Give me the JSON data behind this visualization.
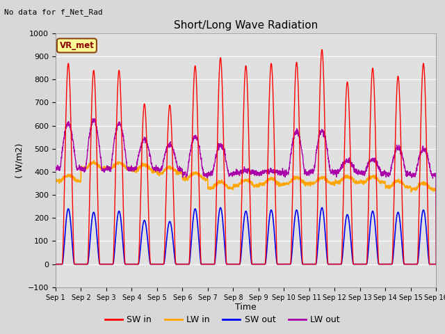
{
  "title": "Short/Long Wave Radiation",
  "xlabel": "Time",
  "ylabel": "( W/m2)",
  "ylim": [
    -100,
    1000
  ],
  "xlim": [
    0,
    15
  ],
  "x_tick_labels": [
    "Sep 1",
    "Sep 2",
    "Sep 3",
    "Sep 4",
    "Sep 5",
    "Sep 6",
    "Sep 7",
    "Sep 8",
    "Sep 9",
    "Sep 10",
    "Sep 11",
    "Sep 12",
    "Sep 13",
    "Sep 14",
    "Sep 15",
    "Sep 16"
  ],
  "annotation_text": "No data for f_Net_Rad",
  "vr_met_label": "VR_met",
  "fig_bg_color": "#d8d8d8",
  "plot_bg_color": "#e0e0e0",
  "colors": {
    "SW_in": "#ff0000",
    "LW_in": "#ffa500",
    "SW_out": "#0000ee",
    "LW_out": "#aa00aa"
  },
  "legend_labels": [
    "SW in",
    "LW in",
    "SW out",
    "LW out"
  ],
  "peak_SW_in": [
    870,
    840,
    840,
    695,
    690,
    860,
    895,
    860,
    870,
    875,
    930,
    790,
    850,
    815,
    870
  ],
  "peak_SW_out": [
    240,
    225,
    230,
    190,
    185,
    240,
    245,
    230,
    235,
    235,
    245,
    215,
    230,
    225,
    235
  ],
  "base_LW_in": [
    360,
    415,
    415,
    405,
    395,
    370,
    330,
    340,
    345,
    350,
    350,
    355,
    355,
    335,
    325
  ],
  "base_LW_out": [
    415,
    410,
    415,
    415,
    410,
    390,
    390,
    395,
    395,
    395,
    400,
    400,
    395,
    390,
    385
  ],
  "peak_LW_out": [
    610,
    625,
    610,
    540,
    520,
    555,
    515,
    405,
    405,
    575,
    580,
    450,
    455,
    505,
    500
  ]
}
